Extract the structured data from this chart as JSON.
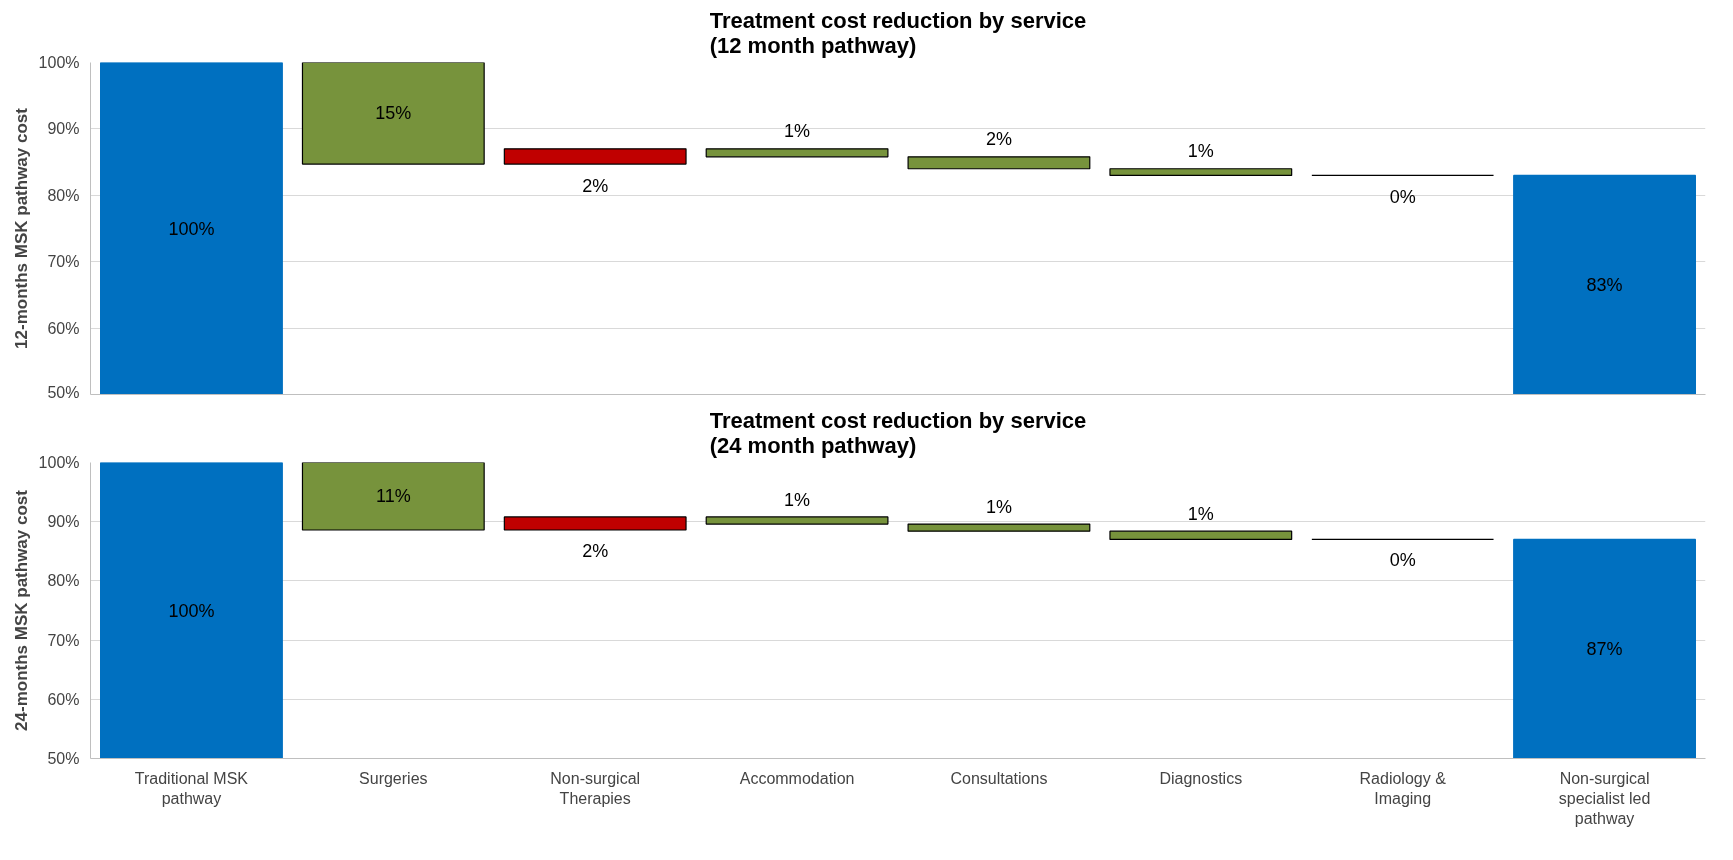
{
  "chart_data": [
    {
      "type": "bar",
      "title": "Treatment cost reduction by service\n(12 month pathway)",
      "ylabel": "12-months MSK pathway cost",
      "categories": [
        null,
        null,
        null,
        null,
        null,
        null,
        null,
        null
      ],
      "values": [
        100,
        -15.3,
        2.3,
        -1.2,
        -1.8,
        -1.0,
        0,
        83
      ],
      "base": [
        null,
        100,
        84.7,
        87.0,
        85.8,
        84.0,
        83.0,
        null
      ],
      "colors": [
        "#0070c0",
        "#77933c",
        "#c00000",
        "#77933c",
        "#77933c",
        "#77933c",
        "#000000",
        "#0070c0"
      ],
      "value_labels": [
        "100%",
        "15%",
        "2%",
        "1%",
        "2%",
        "1%",
        "0%",
        "83%"
      ],
      "ylim": [
        50,
        100
      ],
      "yticks": [
        {
          "value": 50,
          "label": "50%"
        },
        {
          "value": 60,
          "label": "60%"
        },
        {
          "value": 70,
          "label": "70%"
        },
        {
          "value": 80,
          "label": "80%"
        },
        {
          "value": 90,
          "label": "90%"
        },
        {
          "value": 100,
          "label": "100%"
        }
      ],
      "grid": "y",
      "tick_labels": "y"
    },
    {
      "type": "bar",
      "title": "Treatment cost reduction by service\n(24 month pathway)",
      "ylabel": "24-months MSK pathway cost",
      "categories": [
        "Traditional MSK pathway",
        "Surgeries",
        "Non-surgical Therapies",
        "Accommodation",
        "Consultations",
        "Diagnostics",
        "Radiology & Imaging",
        "Non-surgical specialist led pathway"
      ],
      "values": [
        100,
        -11.4,
        2.2,
        -1.2,
        -1.2,
        -1.4,
        0,
        87
      ],
      "base": [
        null,
        100,
        88.6,
        90.8,
        89.6,
        88.4,
        87.0,
        null
      ],
      "colors": [
        "#0070c0",
        "#77933c",
        "#c00000",
        "#77933c",
        "#77933c",
        "#77933c",
        "#000000",
        "#0070c0"
      ],
      "value_labels": [
        "100%",
        "11%",
        "2%",
        "1%",
        "1%",
        "1%",
        "0%",
        "87%"
      ],
      "ylim": [
        50,
        100
      ],
      "yticks": [
        {
          "value": 50,
          "label": "50%"
        },
        {
          "value": 60,
          "label": "60%"
        },
        {
          "value": 70,
          "label": "70%"
        },
        {
          "value": 80,
          "label": "80%"
        },
        {
          "value": 90,
          "label": "90%"
        },
        {
          "value": 100,
          "label": "100%"
        }
      ],
      "grid": "y"
    }
  ]
}
